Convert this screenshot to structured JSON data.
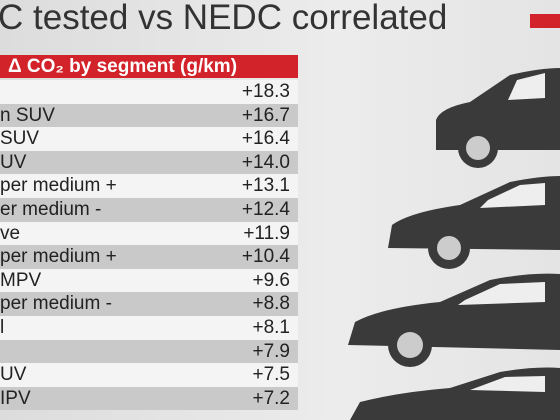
{
  "header": {
    "title": "C tested vs NEDC correlated"
  },
  "table": {
    "heading": "Δ CO₂ by segment (g/km)",
    "rows": [
      [
        null,
        "+18.3"
      ],
      [
        "n SUV",
        "+16.7"
      ],
      [
        "SUV",
        "+16.4"
      ],
      [
        "UV",
        "+14.0"
      ],
      [
        "per medium +",
        "+13.1"
      ],
      [
        "er medium -",
        "+12.4"
      ],
      [
        "ve",
        "+11.9"
      ],
      [
        "per medium +",
        "+10.4"
      ],
      [
        "MPV",
        "+9.6"
      ],
      [
        "per medium -",
        "+8.8"
      ],
      [
        "l",
        "+8.1"
      ],
      [
        null,
        "+7.9"
      ],
      [
        "UV",
        "+7.5"
      ],
      [
        "IPV",
        "+7.2"
      ]
    ]
  }
}
